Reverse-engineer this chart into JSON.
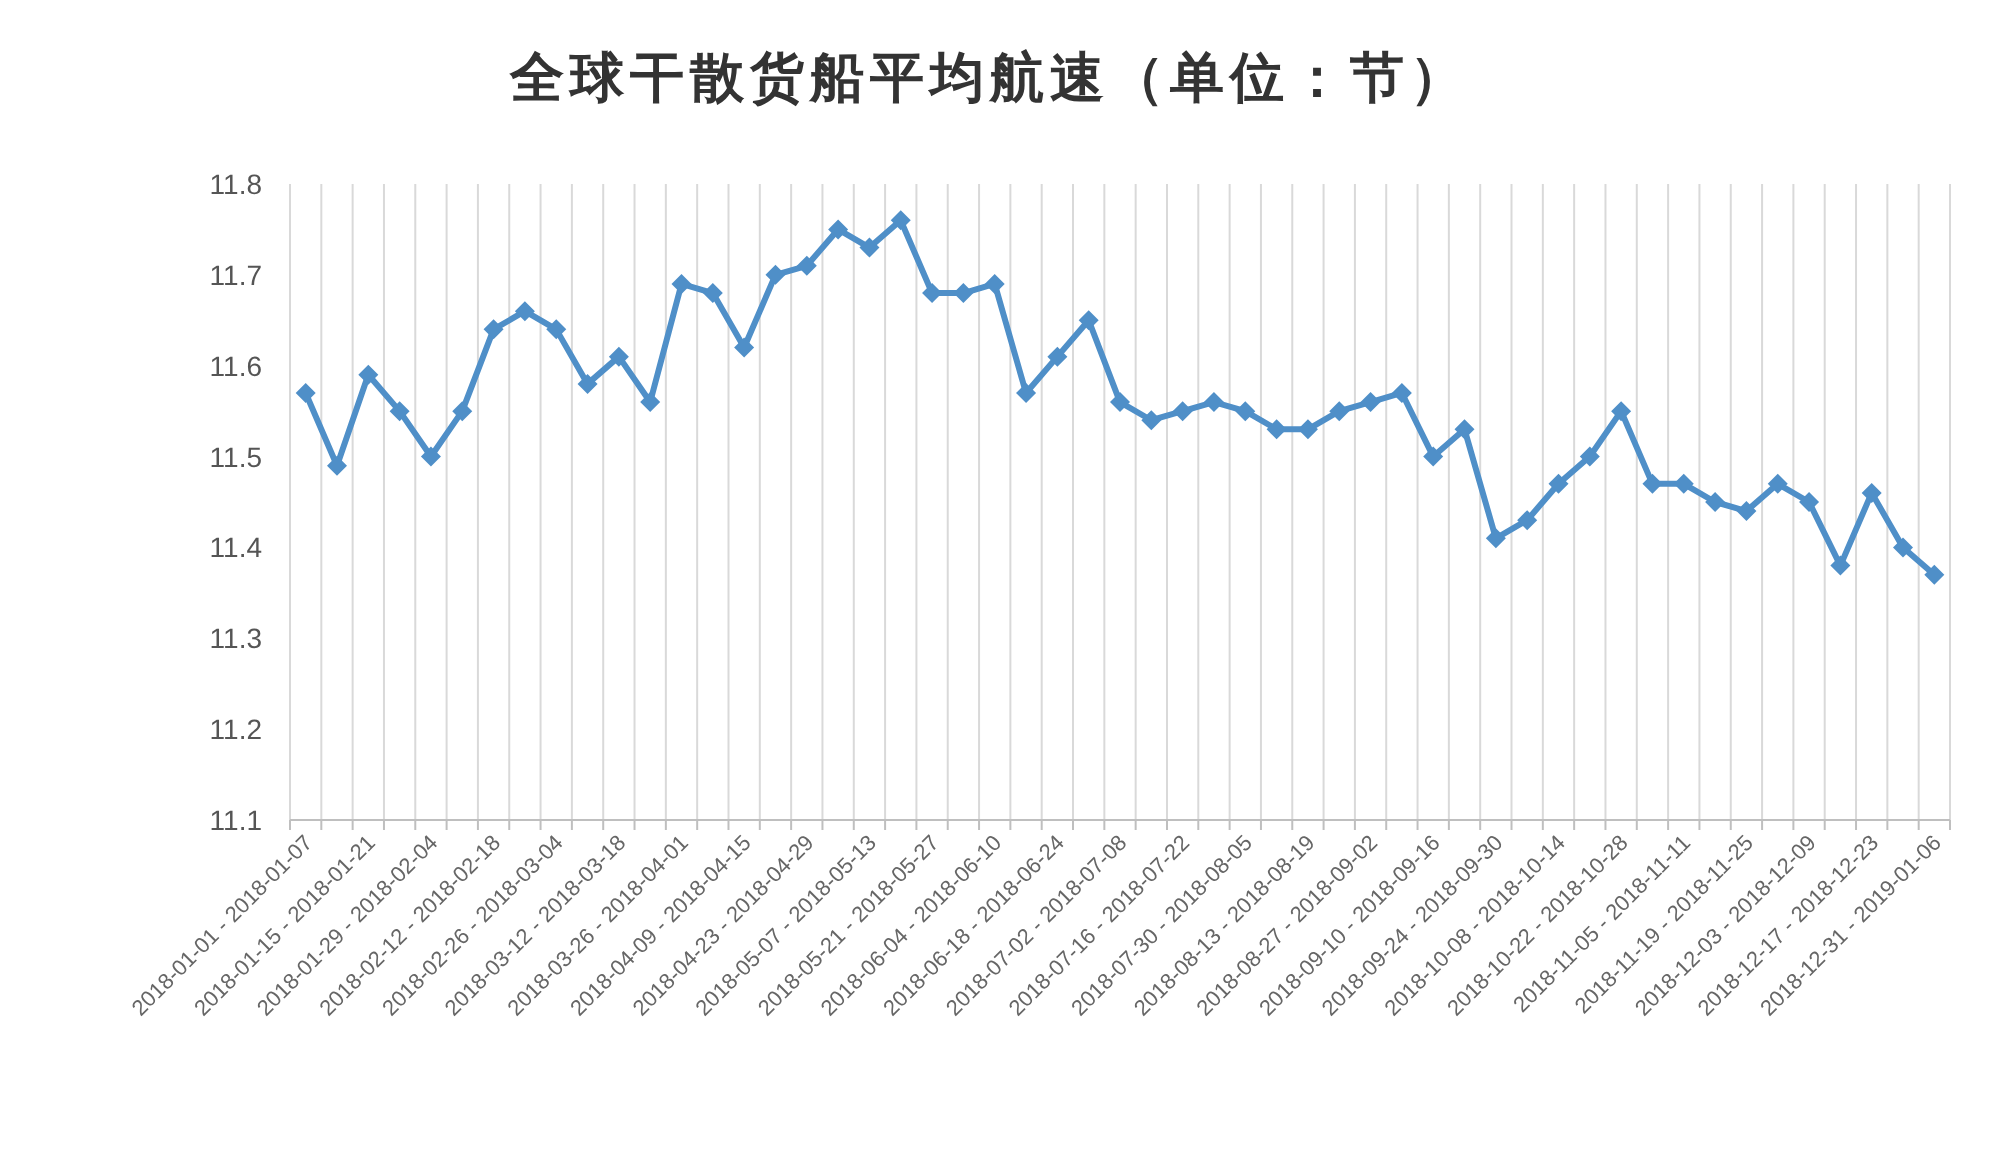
{
  "chart_data": {
    "type": "line",
    "title": "全球干散货船平均航速（单位：节）",
    "categories": [
      "2018-01-01 - 2018-01-07",
      null,
      "2018-01-15 - 2018-01-21",
      null,
      "2018-01-29 - 2018-02-04",
      null,
      "2018-02-12 - 2018-02-18",
      null,
      "2018-02-26 - 2018-03-04",
      null,
      "2018-03-12 - 2018-03-18",
      null,
      "2018-03-26 - 2018-04-01",
      null,
      "2018-04-09 - 2018-04-15",
      null,
      "2018-04-23 - 2018-04-29",
      null,
      "2018-05-07 - 2018-05-13",
      null,
      "2018-05-21 - 2018-05-27",
      null,
      "2018-06-04 - 2018-06-10",
      null,
      "2018-06-18 - 2018-06-24",
      null,
      "2018-07-02 - 2018-07-08",
      null,
      "2018-07-16 - 2018-07-22",
      null,
      "2018-07-30 - 2018-08-05",
      null,
      "2018-08-13 - 2018-08-19",
      null,
      "2018-08-27 - 2018-09-02",
      null,
      "2018-09-10 - 2018-09-16",
      null,
      "2018-09-24 - 2018-09-30",
      null,
      "2018-10-08 - 2018-10-14",
      null,
      "2018-10-22 - 2018-10-28",
      null,
      "2018-11-05 - 2018-11-11",
      null,
      "2018-11-19 - 2018-11-25",
      null,
      "2018-12-03 - 2018-12-09",
      null,
      "2018-12-17 - 2018-12-23",
      null,
      "2018-12-31 - 2019-01-06"
    ],
    "series": [
      {
        "color": "#4f8fc8",
        "values": [
          11.57,
          11.49,
          11.59,
          11.55,
          11.5,
          11.55,
          11.64,
          11.66,
          11.64,
          11.58,
          11.61,
          11.56,
          11.69,
          11.68,
          11.62,
          11.7,
          11.71,
          11.75,
          11.73,
          11.76,
          11.68,
          11.68,
          11.69,
          11.57,
          11.61,
          11.65,
          11.56,
          11.54,
          11.55,
          11.56,
          11.55,
          11.53,
          11.53,
          11.55,
          11.56,
          11.57,
          11.5,
          11.53,
          11.41,
          11.43,
          11.47,
          11.5,
          11.55,
          11.47,
          11.47,
          11.45,
          11.44,
          11.47,
          11.45,
          11.38,
          11.46,
          11.4,
          11.37
        ]
      }
    ],
    "ylim": [
      11.1,
      11.8
    ],
    "yticks": [
      11.1,
      11.2,
      11.3,
      11.4,
      11.5,
      11.6,
      11.7,
      11.8
    ],
    "grid": "x",
    "marker": "diamond",
    "line_style": "solid"
  }
}
